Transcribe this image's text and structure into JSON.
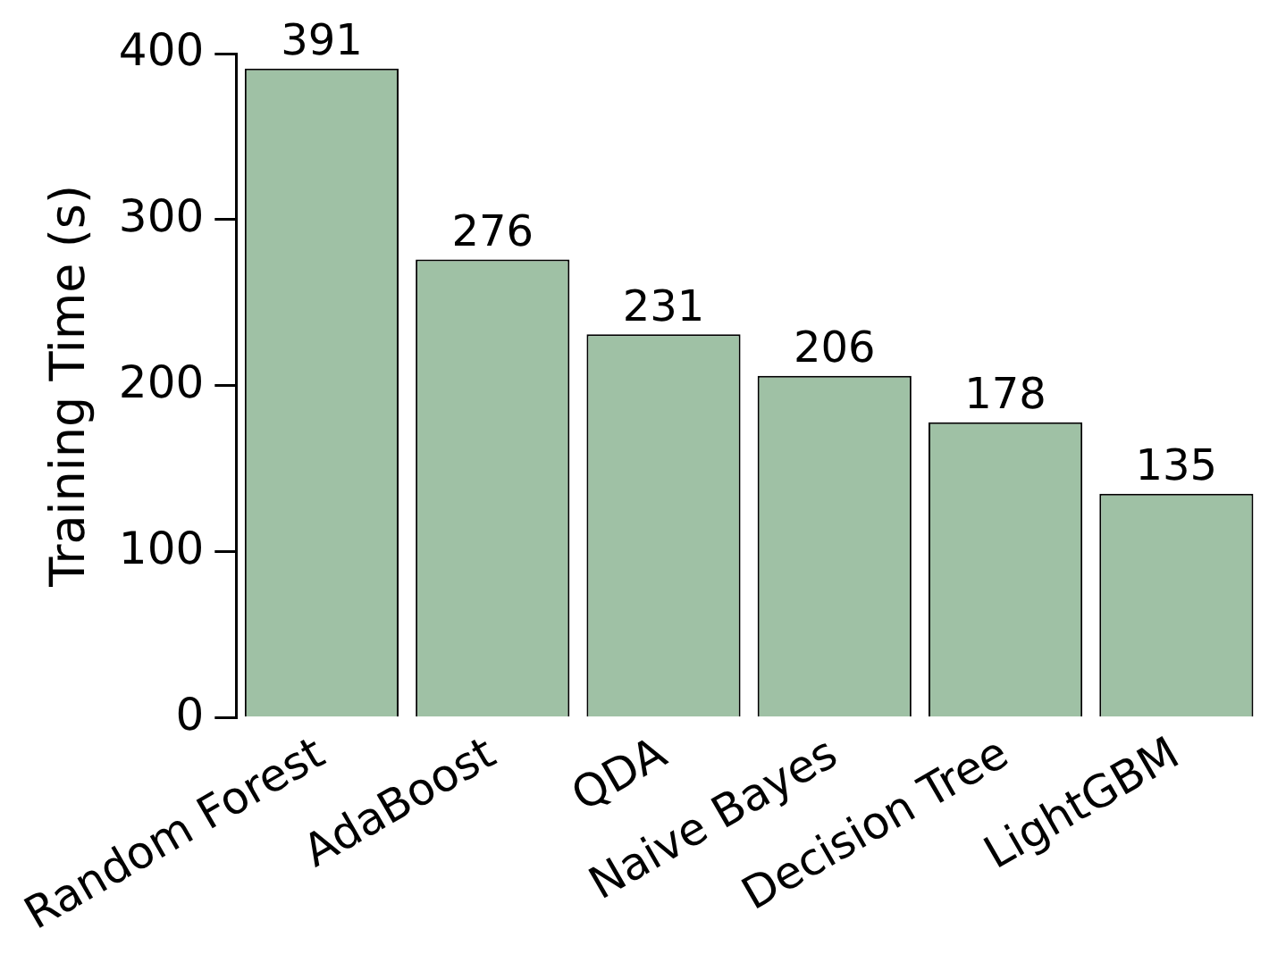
{
  "chart_data": {
    "type": "bar",
    "ylabel": "Training Time (s)",
    "categories": [
      "Random Forest",
      "AdaBoost",
      "QDA",
      "Naive Bayes",
      "Decision Tree",
      "LightGBM"
    ],
    "values": [
      391,
      276,
      231,
      206,
      178,
      135
    ],
    "color": "#9fc1a5",
    "ylim": [
      0,
      400
    ],
    "yticks": [
      0,
      100,
      200,
      300,
      400
    ],
    "grid": false,
    "legend": false,
    "data_labels": true
  }
}
